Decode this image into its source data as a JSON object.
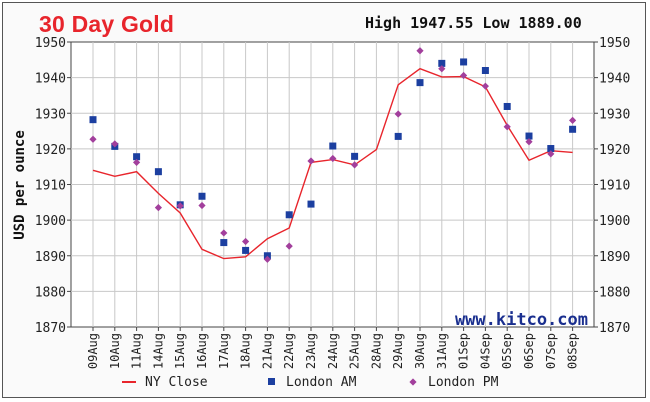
{
  "title": "30 Day Gold",
  "summary": {
    "high_label": "High",
    "high_value": "1947.55",
    "low_label": "Low",
    "low_value": "1889.00"
  },
  "watermark": "www.kitco.com",
  "chart_data": {
    "type": "line",
    "title": "30 Day Gold",
    "ylabel": "USD per ounce",
    "xlabel": "",
    "ylim": [
      1870,
      1950
    ],
    "yticks": [
      1870,
      1880,
      1890,
      1900,
      1910,
      1920,
      1930,
      1940,
      1950
    ],
    "grid": true,
    "legend_position": "bottom",
    "categories": [
      "09Aug",
      "10Aug",
      "11Aug",
      "14Aug",
      "15Aug",
      "16Aug",
      "17Aug",
      "18Aug",
      "21Aug",
      "22Aug",
      "23Aug",
      "24Aug",
      "25Aug",
      "28Aug",
      "29Aug",
      "30Aug",
      "31Aug",
      "01Sep",
      "04Sep",
      "05Sep",
      "06Sep",
      "07Sep",
      "08Sep"
    ],
    "series": [
      {
        "name": "NY Close",
        "style": "line",
        "color": "#e8252c",
        "values": [
          1914,
          1912.3,
          1913.6,
          1907.5,
          1902,
          1891.8,
          1889.2,
          1889.7,
          1894.8,
          1897.8,
          1916.2,
          1917,
          1915.5,
          1919.8,
          1938,
          1942.5,
          1940.2,
          1940.3,
          1937.4,
          1926.6,
          1916.8,
          1919.5,
          1919
        ]
      },
      {
        "name": "London AM",
        "style": "square",
        "color": "#1c3fa0",
        "values": [
          1928.2,
          1920.7,
          1917.8,
          1913.6,
          1904.3,
          1906.7,
          1893.7,
          1891.5,
          1890,
          1901.5,
          1904.5,
          1920.8,
          1917.9,
          null,
          1923.5,
          1938.6,
          1944,
          1944.4,
          1942,
          1931.9,
          1923.6,
          1920.1,
          1925.5
        ]
      },
      {
        "name": "London PM",
        "style": "diamond",
        "color": "#a23f9c",
        "values": [
          1922.7,
          1921.4,
          1916.2,
          1903.5,
          1904,
          1904.1,
          1896.4,
          1894,
          1889,
          1892.7,
          1916.6,
          1917.3,
          1915.5,
          null,
          1929.8,
          1947.55,
          1942.5,
          1940.6,
          1937.6,
          1926.2,
          1922,
          1918.6,
          1928
        ]
      }
    ]
  }
}
